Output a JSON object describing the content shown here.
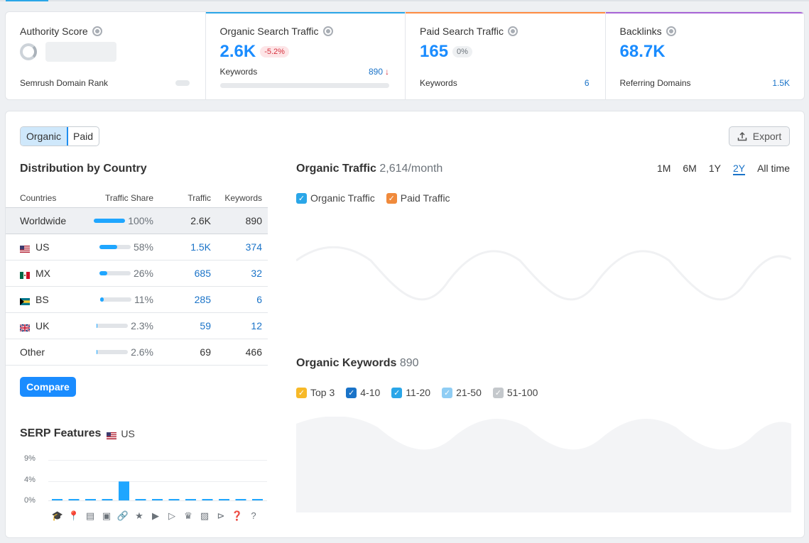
{
  "cards": {
    "authority": {
      "title": "Authority Score",
      "sub_label": "Semrush Domain Rank"
    },
    "organic": {
      "title": "Organic Search Traffic",
      "value": "2.6K",
      "change": "-5.2%",
      "sub_label": "Keywords",
      "sub_value": "890",
      "accent": "#2aa6e8"
    },
    "paid": {
      "title": "Paid Search Traffic",
      "value": "165",
      "change": "0%",
      "sub_label": "Keywords",
      "sub_value": "6",
      "accent": "#ff8c42"
    },
    "backlinks": {
      "title": "Backlinks",
      "value": "68.7K",
      "sub_label": "Referring Domains",
      "sub_value": "1.5K",
      "accent": "#a764d6"
    }
  },
  "toggle": {
    "organic": "Organic",
    "paid": "Paid"
  },
  "export_label": "Export",
  "distribution": {
    "title": "Distribution by Country",
    "columns": [
      "Countries",
      "Traffic Share",
      "Traffic",
      "Keywords"
    ],
    "rows": [
      {
        "country": "Worldwide",
        "share_pct": 100,
        "share": "100%",
        "traffic": "2.6K",
        "keywords": "890",
        "flag": ""
      },
      {
        "country": "US",
        "share_pct": 58,
        "share": "58%",
        "traffic": "1.5K",
        "keywords": "374",
        "flag": "us-flag"
      },
      {
        "country": "MX",
        "share_pct": 26,
        "share": "26%",
        "traffic": "685",
        "keywords": "32",
        "flag": "mx-flag"
      },
      {
        "country": "BS",
        "share_pct": 11,
        "share": "11%",
        "traffic": "285",
        "keywords": "6",
        "flag": "bs-flag"
      },
      {
        "country": "UK",
        "share_pct": 2.3,
        "share": "2.3%",
        "traffic": "59",
        "keywords": "12",
        "flag": "uk-flag"
      },
      {
        "country": "Other",
        "share_pct": 2.6,
        "share": "2.6%",
        "traffic": "69",
        "keywords": "466",
        "flag": ""
      }
    ],
    "compare_label": "Compare"
  },
  "organic_traffic": {
    "title": "Organic Traffic",
    "value": "2,614/month",
    "periods": [
      "1M",
      "6M",
      "1Y",
      "2Y",
      "All time"
    ],
    "active_period": "2Y",
    "legend": [
      {
        "label": "Organic Traffic",
        "color": "#2aa6e8"
      },
      {
        "label": "Paid Traffic",
        "color": "#f08a3c"
      }
    ]
  },
  "organic_keywords": {
    "title": "Organic Keywords",
    "value": "890",
    "legend": [
      {
        "label": "Top 3",
        "color": "#f7b928"
      },
      {
        "label": "4-10",
        "color": "#1a73c8"
      },
      {
        "label": "11-20",
        "color": "#2aa6e8"
      },
      {
        "label": "21-50",
        "color": "#8fcdf4"
      },
      {
        "label": "51-100",
        "color": "#c4c8cc"
      }
    ]
  },
  "serp": {
    "title": "SERP Features",
    "country": "US",
    "y_ticks": [
      "9%",
      "4%",
      "0%"
    ],
    "chart_data": {
      "type": "bar",
      "categories": [
        "graduation-cap",
        "map-pin",
        "news",
        "image",
        "link",
        "star",
        "play",
        "video",
        "crown",
        "picture",
        "play-circle",
        "question-box",
        "question"
      ],
      "values": [
        0.2,
        0.2,
        0.2,
        0.2,
        4,
        0.2,
        0.2,
        0.2,
        0.2,
        0.2,
        0.2,
        0.2,
        0.2
      ],
      "ylim": [
        0,
        9
      ]
    },
    "icons": [
      "🎓",
      "📍",
      "▤",
      "▣",
      "🔗",
      "★",
      "▶",
      "▷",
      "♛",
      "▨",
      "⊳",
      "❓",
      "?"
    ]
  }
}
